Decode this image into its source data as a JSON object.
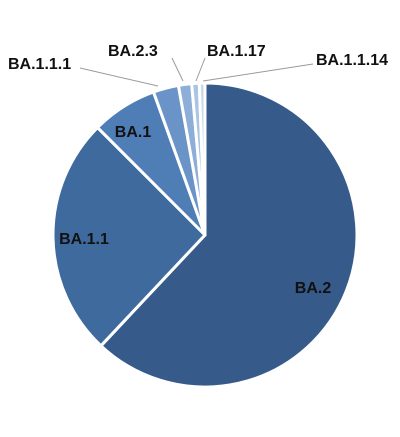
{
  "chart_data": {
    "type": "pie",
    "title": "",
    "legend": "none",
    "slices": [
      {
        "label": "BA.2",
        "value": 62.0,
        "color": "#365a8a"
      },
      {
        "label": "BA.1.1",
        "value": 25.5,
        "color": "#3f6a9e"
      },
      {
        "label": "BA.1",
        "value": 7.0,
        "color": "#4f7db6"
      },
      {
        "label": "BA.1.1.1",
        "value": 2.7,
        "color": "#6a94c8"
      },
      {
        "label": "BA.2.3",
        "value": 1.4,
        "color": "#8caed8"
      },
      {
        "label": "BA.1.17",
        "value": 0.8,
        "color": "#aac4e4"
      },
      {
        "label": "BA.1.1.14",
        "value": 0.6,
        "color": "#c8d8ee"
      }
    ]
  }
}
